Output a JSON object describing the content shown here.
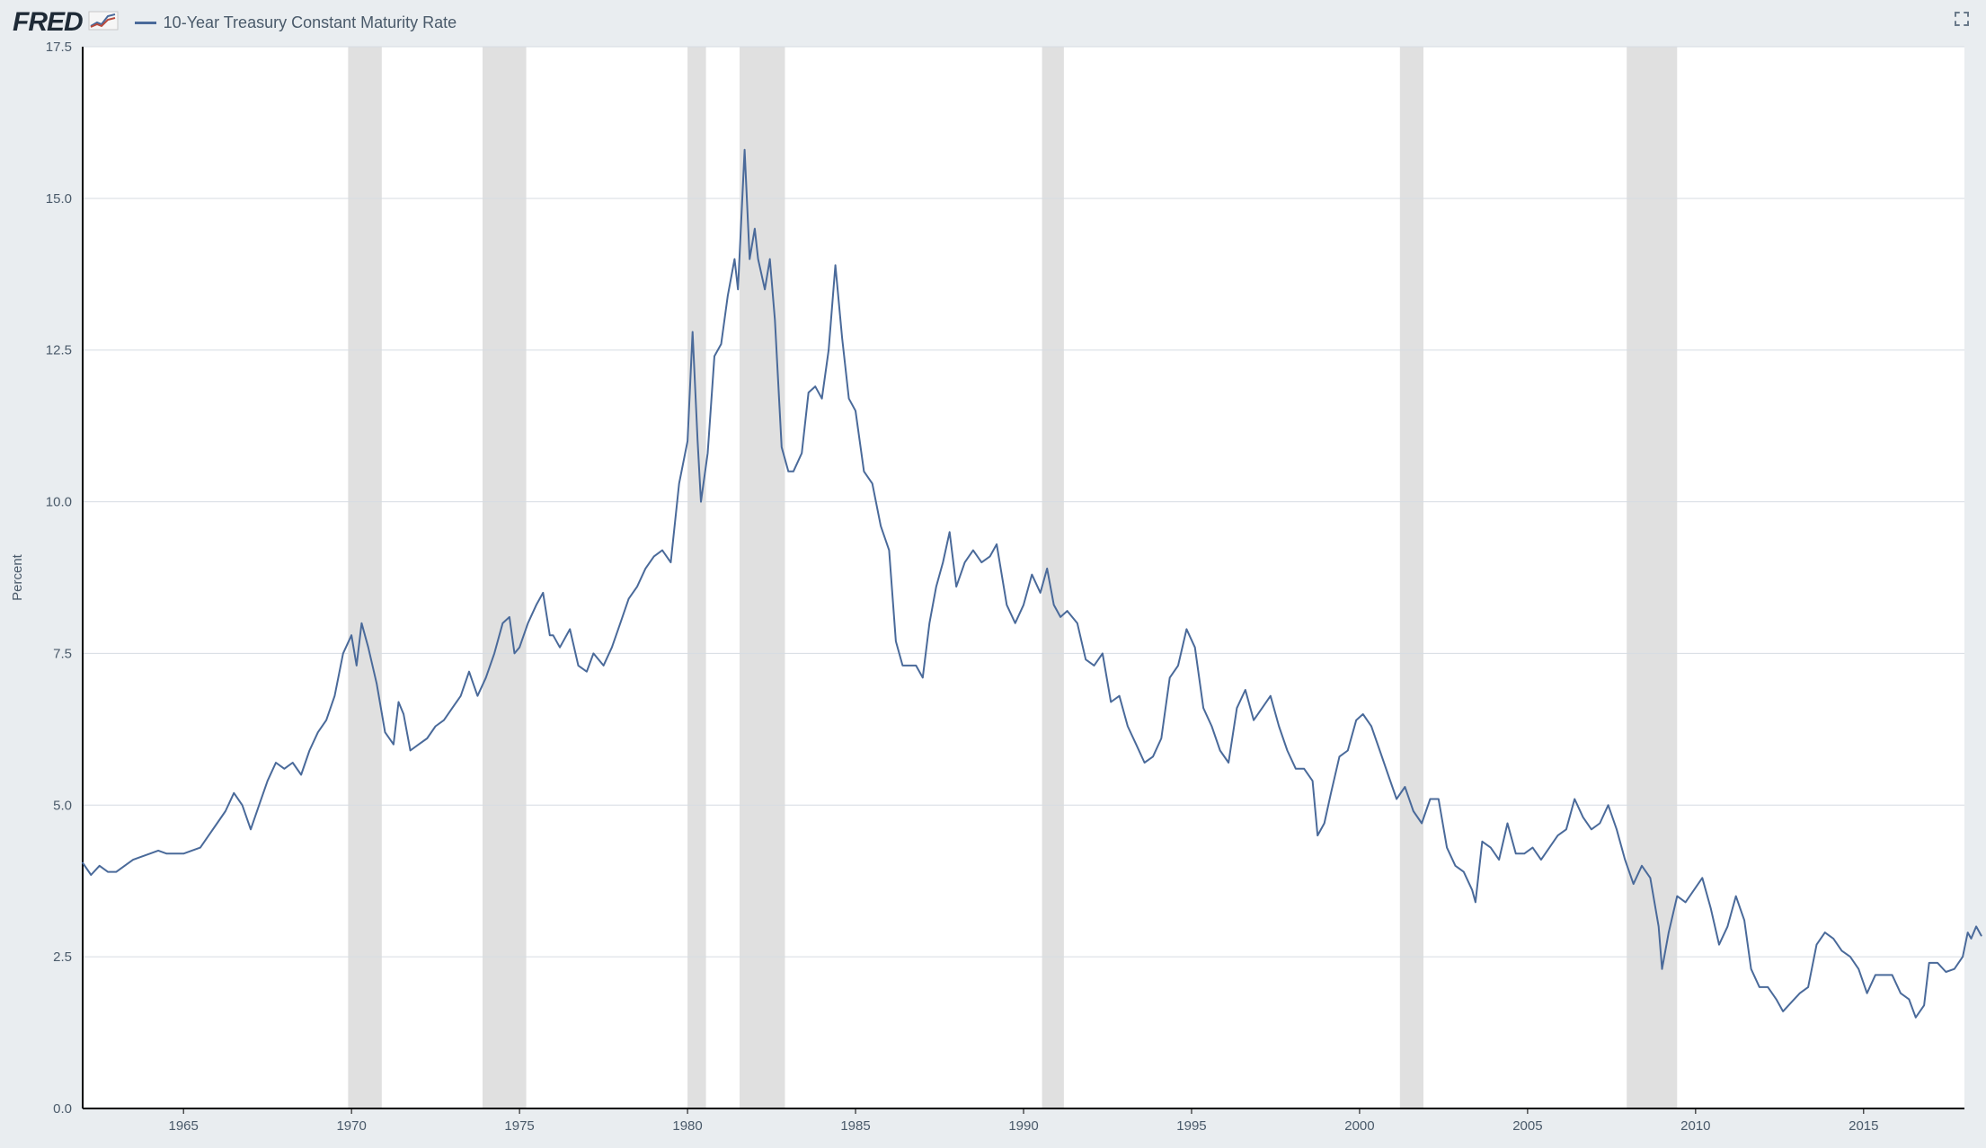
{
  "header": {
    "logo_text": "FRED",
    "series_label": "10-Year Treasury Constant Maturity Rate"
  },
  "chart": {
    "type": "line",
    "ylabel": "Percent",
    "ylabel_fontsize": 15,
    "tick_fontsize": 15,
    "background_color": "#e9edf0",
    "plot_background_color": "#ffffff",
    "grid_color": "#d6dce2",
    "recession_band_color": "#e0e0e0",
    "axis_line_color": "#000000",
    "line_color": "#4a6a9a",
    "line_width": 2,
    "tick_label_color": "#4a5a6a",
    "xlim": [
      1962,
      2018
    ],
    "ylim": [
      0.0,
      17.5
    ],
    "ytick_step": 2.5,
    "yticks": [
      0.0,
      2.5,
      5.0,
      7.5,
      10.0,
      12.5,
      15.0,
      17.5
    ],
    "xticks": [
      1965,
      1970,
      1975,
      1980,
      1985,
      1990,
      1995,
      2000,
      2005,
      2010,
      2015
    ],
    "recession_bands": [
      [
        1969.9,
        1970.9
      ],
      [
        1973.9,
        1975.2
      ],
      [
        1980.0,
        1980.55
      ],
      [
        1981.55,
        1982.9
      ],
      [
        1990.55,
        1991.2
      ],
      [
        2001.2,
        2001.9
      ],
      [
        2007.95,
        2009.45
      ]
    ],
    "series": [
      {
        "x": 1962.0,
        "y": 4.05
      },
      {
        "x": 1962.25,
        "y": 3.85
      },
      {
        "x": 1962.5,
        "y": 4.0
      },
      {
        "x": 1962.75,
        "y": 3.9
      },
      {
        "x": 1963.0,
        "y": 3.9
      },
      {
        "x": 1963.25,
        "y": 4.0
      },
      {
        "x": 1963.5,
        "y": 4.1
      },
      {
        "x": 1963.75,
        "y": 4.15
      },
      {
        "x": 1964.0,
        "y": 4.2
      },
      {
        "x": 1964.25,
        "y": 4.25
      },
      {
        "x": 1964.5,
        "y": 4.2
      },
      {
        "x": 1964.75,
        "y": 4.2
      },
      {
        "x": 1965.0,
        "y": 4.2
      },
      {
        "x": 1965.25,
        "y": 4.25
      },
      {
        "x": 1965.5,
        "y": 4.3
      },
      {
        "x": 1965.75,
        "y": 4.5
      },
      {
        "x": 1966.0,
        "y": 4.7
      },
      {
        "x": 1966.25,
        "y": 4.9
      },
      {
        "x": 1966.5,
        "y": 5.2
      },
      {
        "x": 1966.75,
        "y": 5.0
      },
      {
        "x": 1967.0,
        "y": 4.6
      },
      {
        "x": 1967.25,
        "y": 5.0
      },
      {
        "x": 1967.5,
        "y": 5.4
      },
      {
        "x": 1967.75,
        "y": 5.7
      },
      {
        "x": 1968.0,
        "y": 5.6
      },
      {
        "x": 1968.25,
        "y": 5.7
      },
      {
        "x": 1968.5,
        "y": 5.5
      },
      {
        "x": 1968.75,
        "y": 5.9
      },
      {
        "x": 1969.0,
        "y": 6.2
      },
      {
        "x": 1969.25,
        "y": 6.4
      },
      {
        "x": 1969.5,
        "y": 6.8
      },
      {
        "x": 1969.75,
        "y": 7.5
      },
      {
        "x": 1970.0,
        "y": 7.8
      },
      {
        "x": 1970.15,
        "y": 7.3
      },
      {
        "x": 1970.3,
        "y": 8.0
      },
      {
        "x": 1970.5,
        "y": 7.6
      },
      {
        "x": 1970.75,
        "y": 7.0
      },
      {
        "x": 1971.0,
        "y": 6.2
      },
      {
        "x": 1971.25,
        "y": 6.0
      },
      {
        "x": 1971.4,
        "y": 6.7
      },
      {
        "x": 1971.55,
        "y": 6.5
      },
      {
        "x": 1971.75,
        "y": 5.9
      },
      {
        "x": 1972.0,
        "y": 6.0
      },
      {
        "x": 1972.25,
        "y": 6.1
      },
      {
        "x": 1972.5,
        "y": 6.3
      },
      {
        "x": 1972.75,
        "y": 6.4
      },
      {
        "x": 1973.0,
        "y": 6.6
      },
      {
        "x": 1973.25,
        "y": 6.8
      },
      {
        "x": 1973.5,
        "y": 7.2
      },
      {
        "x": 1973.75,
        "y": 6.8
      },
      {
        "x": 1974.0,
        "y": 7.1
      },
      {
        "x": 1974.25,
        "y": 7.5
      },
      {
        "x": 1974.5,
        "y": 8.0
      },
      {
        "x": 1974.7,
        "y": 8.1
      },
      {
        "x": 1974.85,
        "y": 7.5
      },
      {
        "x": 1975.0,
        "y": 7.6
      },
      {
        "x": 1975.25,
        "y": 8.0
      },
      {
        "x": 1975.5,
        "y": 8.3
      },
      {
        "x": 1975.7,
        "y": 8.5
      },
      {
        "x": 1975.9,
        "y": 7.8
      },
      {
        "x": 1976.0,
        "y": 7.8
      },
      {
        "x": 1976.2,
        "y": 7.6
      },
      {
        "x": 1976.5,
        "y": 7.9
      },
      {
        "x": 1976.75,
        "y": 7.3
      },
      {
        "x": 1977.0,
        "y": 7.2
      },
      {
        "x": 1977.2,
        "y": 7.5
      },
      {
        "x": 1977.5,
        "y": 7.3
      },
      {
        "x": 1977.75,
        "y": 7.6
      },
      {
        "x": 1978.0,
        "y": 8.0
      },
      {
        "x": 1978.25,
        "y": 8.4
      },
      {
        "x": 1978.5,
        "y": 8.6
      },
      {
        "x": 1978.75,
        "y": 8.9
      },
      {
        "x": 1979.0,
        "y": 9.1
      },
      {
        "x": 1979.25,
        "y": 9.2
      },
      {
        "x": 1979.5,
        "y": 9.0
      },
      {
        "x": 1979.75,
        "y": 10.3
      },
      {
        "x": 1980.0,
        "y": 11.0
      },
      {
        "x": 1980.15,
        "y": 12.8
      },
      {
        "x": 1980.3,
        "y": 11.0
      },
      {
        "x": 1980.4,
        "y": 10.0
      },
      {
        "x": 1980.6,
        "y": 10.8
      },
      {
        "x": 1980.8,
        "y": 12.4
      },
      {
        "x": 1981.0,
        "y": 12.6
      },
      {
        "x": 1981.2,
        "y": 13.4
      },
      {
        "x": 1981.4,
        "y": 14.0
      },
      {
        "x": 1981.5,
        "y": 13.5
      },
      {
        "x": 1981.7,
        "y": 15.8
      },
      {
        "x": 1981.85,
        "y": 14.0
      },
      {
        "x": 1982.0,
        "y": 14.5
      },
      {
        "x": 1982.1,
        "y": 14.0
      },
      {
        "x": 1982.3,
        "y": 13.5
      },
      {
        "x": 1982.45,
        "y": 14.0
      },
      {
        "x": 1982.6,
        "y": 13.0
      },
      {
        "x": 1982.8,
        "y": 10.9
      },
      {
        "x": 1983.0,
        "y": 10.5
      },
      {
        "x": 1983.15,
        "y": 10.5
      },
      {
        "x": 1983.4,
        "y": 10.8
      },
      {
        "x": 1983.6,
        "y": 11.8
      },
      {
        "x": 1983.8,
        "y": 11.9
      },
      {
        "x": 1984.0,
        "y": 11.7
      },
      {
        "x": 1984.2,
        "y": 12.5
      },
      {
        "x": 1984.4,
        "y": 13.9
      },
      {
        "x": 1984.6,
        "y": 12.7
      },
      {
        "x": 1984.8,
        "y": 11.7
      },
      {
        "x": 1985.0,
        "y": 11.5
      },
      {
        "x": 1985.25,
        "y": 10.5
      },
      {
        "x": 1985.5,
        "y": 10.3
      },
      {
        "x": 1985.75,
        "y": 9.6
      },
      {
        "x": 1986.0,
        "y": 9.2
      },
      {
        "x": 1986.2,
        "y": 7.7
      },
      {
        "x": 1986.4,
        "y": 7.3
      },
      {
        "x": 1986.6,
        "y": 7.3
      },
      {
        "x": 1986.8,
        "y": 7.3
      },
      {
        "x": 1987.0,
        "y": 7.1
      },
      {
        "x": 1987.2,
        "y": 8.0
      },
      {
        "x": 1987.4,
        "y": 8.6
      },
      {
        "x": 1987.6,
        "y": 9.0
      },
      {
        "x": 1987.8,
        "y": 9.5
      },
      {
        "x": 1988.0,
        "y": 8.6
      },
      {
        "x": 1988.25,
        "y": 9.0
      },
      {
        "x": 1988.5,
        "y": 9.2
      },
      {
        "x": 1988.75,
        "y": 9.0
      },
      {
        "x": 1989.0,
        "y": 9.1
      },
      {
        "x": 1989.2,
        "y": 9.3
      },
      {
        "x": 1989.5,
        "y": 8.3
      },
      {
        "x": 1989.75,
        "y": 8.0
      },
      {
        "x": 1990.0,
        "y": 8.3
      },
      {
        "x": 1990.25,
        "y": 8.8
      },
      {
        "x": 1990.5,
        "y": 8.5
      },
      {
        "x": 1990.7,
        "y": 8.9
      },
      {
        "x": 1990.9,
        "y": 8.3
      },
      {
        "x": 1991.1,
        "y": 8.1
      },
      {
        "x": 1991.3,
        "y": 8.2
      },
      {
        "x": 1991.6,
        "y": 8.0
      },
      {
        "x": 1991.85,
        "y": 7.4
      },
      {
        "x": 1992.1,
        "y": 7.3
      },
      {
        "x": 1992.35,
        "y": 7.5
      },
      {
        "x": 1992.6,
        "y": 6.7
      },
      {
        "x": 1992.85,
        "y": 6.8
      },
      {
        "x": 1993.1,
        "y": 6.3
      },
      {
        "x": 1993.35,
        "y": 6.0
      },
      {
        "x": 1993.6,
        "y": 5.7
      },
      {
        "x": 1993.85,
        "y": 5.8
      },
      {
        "x": 1994.1,
        "y": 6.1
      },
      {
        "x": 1994.35,
        "y": 7.1
      },
      {
        "x": 1994.6,
        "y": 7.3
      },
      {
        "x": 1994.85,
        "y": 7.9
      },
      {
        "x": 1995.1,
        "y": 7.6
      },
      {
        "x": 1995.35,
        "y": 6.6
      },
      {
        "x": 1995.6,
        "y": 6.3
      },
      {
        "x": 1995.85,
        "y": 5.9
      },
      {
        "x": 1996.1,
        "y": 5.7
      },
      {
        "x": 1996.35,
        "y": 6.6
      },
      {
        "x": 1996.6,
        "y": 6.9
      },
      {
        "x": 1996.85,
        "y": 6.4
      },
      {
        "x": 1997.1,
        "y": 6.6
      },
      {
        "x": 1997.35,
        "y": 6.8
      },
      {
        "x": 1997.6,
        "y": 6.3
      },
      {
        "x": 1997.85,
        "y": 5.9
      },
      {
        "x": 1998.1,
        "y": 5.6
      },
      {
        "x": 1998.35,
        "y": 5.6
      },
      {
        "x": 1998.6,
        "y": 5.4
      },
      {
        "x": 1998.75,
        "y": 4.5
      },
      {
        "x": 1998.95,
        "y": 4.7
      },
      {
        "x": 1999.15,
        "y": 5.2
      },
      {
        "x": 1999.4,
        "y": 5.8
      },
      {
        "x": 1999.65,
        "y": 5.9
      },
      {
        "x": 1999.9,
        "y": 6.4
      },
      {
        "x": 2000.1,
        "y": 6.5
      },
      {
        "x": 2000.35,
        "y": 6.3
      },
      {
        "x": 2000.6,
        "y": 5.9
      },
      {
        "x": 2000.85,
        "y": 5.5
      },
      {
        "x": 2001.1,
        "y": 5.1
      },
      {
        "x": 2001.35,
        "y": 5.3
      },
      {
        "x": 2001.6,
        "y": 4.9
      },
      {
        "x": 2001.85,
        "y": 4.7
      },
      {
        "x": 2002.1,
        "y": 5.1
      },
      {
        "x": 2002.35,
        "y": 5.1
      },
      {
        "x": 2002.6,
        "y": 4.3
      },
      {
        "x": 2002.85,
        "y": 4.0
      },
      {
        "x": 2003.1,
        "y": 3.9
      },
      {
        "x": 2003.35,
        "y": 3.6
      },
      {
        "x": 2003.45,
        "y": 3.4
      },
      {
        "x": 2003.65,
        "y": 4.4
      },
      {
        "x": 2003.9,
        "y": 4.3
      },
      {
        "x": 2004.15,
        "y": 4.1
      },
      {
        "x": 2004.4,
        "y": 4.7
      },
      {
        "x": 2004.65,
        "y": 4.2
      },
      {
        "x": 2004.9,
        "y": 4.2
      },
      {
        "x": 2005.15,
        "y": 4.3
      },
      {
        "x": 2005.4,
        "y": 4.1
      },
      {
        "x": 2005.65,
        "y": 4.3
      },
      {
        "x": 2005.9,
        "y": 4.5
      },
      {
        "x": 2006.15,
        "y": 4.6
      },
      {
        "x": 2006.4,
        "y": 5.1
      },
      {
        "x": 2006.65,
        "y": 4.8
      },
      {
        "x": 2006.9,
        "y": 4.6
      },
      {
        "x": 2007.15,
        "y": 4.7
      },
      {
        "x": 2007.4,
        "y": 5.0
      },
      {
        "x": 2007.65,
        "y": 4.6
      },
      {
        "x": 2007.9,
        "y": 4.1
      },
      {
        "x": 2008.15,
        "y": 3.7
      },
      {
        "x": 2008.4,
        "y": 4.0
      },
      {
        "x": 2008.65,
        "y": 3.8
      },
      {
        "x": 2008.9,
        "y": 3.0
      },
      {
        "x": 2009.0,
        "y": 2.3
      },
      {
        "x": 2009.2,
        "y": 2.9
      },
      {
        "x": 2009.45,
        "y": 3.5
      },
      {
        "x": 2009.7,
        "y": 3.4
      },
      {
        "x": 2009.95,
        "y": 3.6
      },
      {
        "x": 2010.2,
        "y": 3.8
      },
      {
        "x": 2010.45,
        "y": 3.3
      },
      {
        "x": 2010.7,
        "y": 2.7
      },
      {
        "x": 2010.95,
        "y": 3.0
      },
      {
        "x": 2011.2,
        "y": 3.5
      },
      {
        "x": 2011.45,
        "y": 3.1
      },
      {
        "x": 2011.65,
        "y": 2.3
      },
      {
        "x": 2011.9,
        "y": 2.0
      },
      {
        "x": 2012.15,
        "y": 2.0
      },
      {
        "x": 2012.4,
        "y": 1.8
      },
      {
        "x": 2012.6,
        "y": 1.6
      },
      {
        "x": 2012.85,
        "y": 1.75
      },
      {
        "x": 2013.1,
        "y": 1.9
      },
      {
        "x": 2013.35,
        "y": 2.0
      },
      {
        "x": 2013.6,
        "y": 2.7
      },
      {
        "x": 2013.85,
        "y": 2.9
      },
      {
        "x": 2014.1,
        "y": 2.8
      },
      {
        "x": 2014.35,
        "y": 2.6
      },
      {
        "x": 2014.6,
        "y": 2.5
      },
      {
        "x": 2014.85,
        "y": 2.3
      },
      {
        "x": 2015.1,
        "y": 1.9
      },
      {
        "x": 2015.35,
        "y": 2.2
      },
      {
        "x": 2015.6,
        "y": 2.2
      },
      {
        "x": 2015.85,
        "y": 2.2
      },
      {
        "x": 2016.1,
        "y": 1.9
      },
      {
        "x": 2016.35,
        "y": 1.8
      },
      {
        "x": 2016.55,
        "y": 1.5
      },
      {
        "x": 2016.8,
        "y": 1.7
      },
      {
        "x": 2016.95,
        "y": 2.4
      },
      {
        "x": 2017.2,
        "y": 2.4
      },
      {
        "x": 2017.45,
        "y": 2.25
      },
      {
        "x": 2017.7,
        "y": 2.3
      },
      {
        "x": 2017.95,
        "y": 2.5
      },
      {
        "x": 2018.1,
        "y": 2.9
      },
      {
        "x": 2018.2,
        "y": 2.8
      },
      {
        "x": 2018.35,
        "y": 3.0
      },
      {
        "x": 2018.5,
        "y": 2.85
      }
    ]
  }
}
